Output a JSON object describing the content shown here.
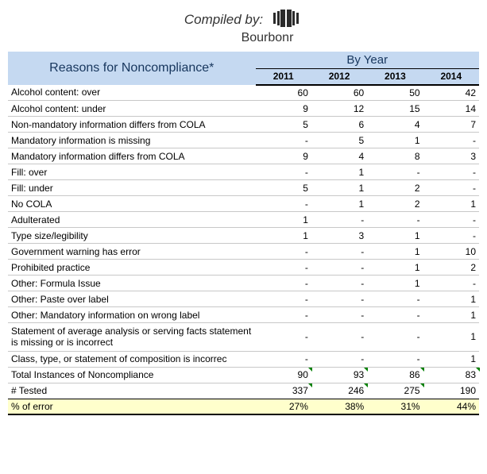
{
  "header": {
    "compiled_label": "Compiled by:",
    "brand": "Bourbonr"
  },
  "table": {
    "header": {
      "reasons_label": "Reasons for Noncompliance*",
      "by_year_label": "By Year",
      "years": [
        "2011",
        "2012",
        "2013",
        "2014"
      ]
    },
    "rows": [
      {
        "label": "Alcohol content: over",
        "values": [
          "60",
          "60",
          "50",
          "42"
        ]
      },
      {
        "label": "Alcohol content: under",
        "values": [
          "9",
          "12",
          "15",
          "14"
        ]
      },
      {
        "label": "Non-mandatory information differs from COLA",
        "values": [
          "5",
          "6",
          "4",
          "7"
        ]
      },
      {
        "label": "Mandatory information is missing",
        "values": [
          "-",
          "5",
          "1",
          "-"
        ]
      },
      {
        "label": "Mandatory information differs from COLA",
        "values": [
          "9",
          "4",
          "8",
          "3"
        ]
      },
      {
        "label": "Fill: over",
        "values": [
          "-",
          "1",
          "-",
          "-"
        ]
      },
      {
        "label": "Fill: under",
        "values": [
          "5",
          "1",
          "2",
          "-"
        ]
      },
      {
        "label": "No COLA",
        "values": [
          "-",
          "1",
          "2",
          "1"
        ]
      },
      {
        "label": "Adulterated",
        "values": [
          "1",
          "-",
          "-",
          "-"
        ]
      },
      {
        "label": "Type size/legibility",
        "values": [
          "1",
          "3",
          "1",
          "-"
        ]
      },
      {
        "label": "Government warning has error",
        "values": [
          "-",
          "-",
          "1",
          "10"
        ]
      },
      {
        "label": "Prohibited practice",
        "values": [
          "-",
          "-",
          "1",
          "2"
        ]
      },
      {
        "label": "Other: Formula Issue",
        "values": [
          "-",
          "-",
          "1",
          "-"
        ]
      },
      {
        "label": "Other: Paste over label",
        "values": [
          "-",
          "-",
          "-",
          "1"
        ]
      },
      {
        "label": "Other: Mandatory information on wrong label",
        "values": [
          "-",
          "-",
          "-",
          "1"
        ]
      },
      {
        "label": "Statement of average analysis or serving facts statement is missing or is incorrect",
        "multiline": true,
        "values": [
          "-",
          "-",
          "-",
          "1"
        ]
      },
      {
        "label": "Class, type, or statement of composition is incorrec",
        "values": [
          "-",
          "-",
          "-",
          "1"
        ]
      }
    ],
    "totals": {
      "instances": {
        "label": "Total Instances of Noncompliance",
        "values": [
          "90",
          "93",
          "86",
          "83"
        ],
        "ticks": [
          true,
          true,
          true,
          true
        ]
      },
      "tested": {
        "label": "# Tested",
        "values": [
          "337",
          "246",
          "275",
          "190"
        ],
        "ticks": [
          true,
          true,
          true,
          false
        ]
      },
      "error": {
        "label": "% of error",
        "values": [
          "27%",
          "38%",
          "31%",
          "44%"
        ]
      }
    }
  },
  "style": {
    "header_bg": "#c5d9f1",
    "header_text": "#17365d",
    "row_border": "#c8c8c8",
    "highlight_bg": "#ffffcc",
    "tick_color": "#008000"
  }
}
